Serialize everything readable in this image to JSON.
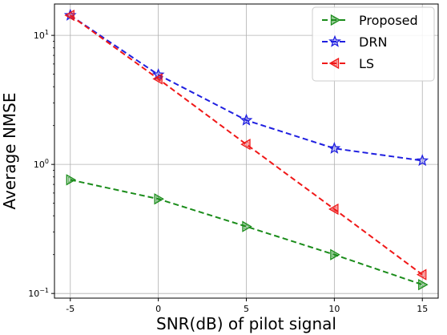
{
  "chart_data": {
    "type": "line",
    "title": "",
    "xlabel": "SNR(dB) of pilot signal",
    "ylabel": "Average NMSE",
    "yscale": "log",
    "x": [
      -5,
      0,
      5,
      10,
      15
    ],
    "xticks": [
      "-5",
      "0",
      "5",
      "10",
      "15"
    ],
    "xlim": [
      -5.9,
      15.9
    ],
    "ylim": [
      0.092,
      17.5
    ],
    "yticks": [
      {
        "value": 0.1,
        "base": "10",
        "exp": "−1"
      },
      {
        "value": 1,
        "base": "10",
        "exp": "0"
      },
      {
        "value": 10,
        "base": "10",
        "exp": "1"
      }
    ],
    "grid": true,
    "legend_position": "top-right",
    "series": [
      {
        "name": "Proposed",
        "color": "#1a8c1a",
        "marker": "triangle-right",
        "values": [
          0.76,
          0.54,
          0.33,
          0.2,
          0.117
        ]
      },
      {
        "name": "DRN",
        "color": "#1f1fe0",
        "marker": "star",
        "values": [
          14.3,
          4.95,
          2.2,
          1.33,
          1.07
        ]
      },
      {
        "name": "LS",
        "color": "#f01818",
        "marker": "triangle-left",
        "values": [
          14.3,
          4.6,
          1.43,
          0.45,
          0.14
        ]
      }
    ]
  }
}
